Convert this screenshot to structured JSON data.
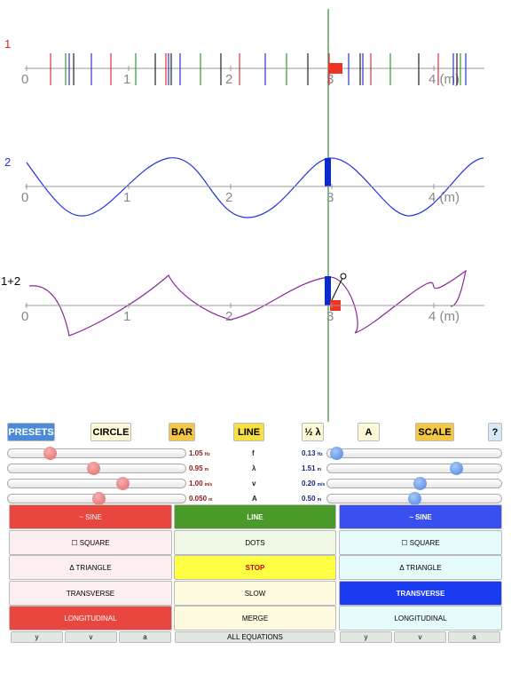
{
  "panels": [
    {
      "label": "1",
      "ticks": [
        "0",
        "1",
        "2",
        "3",
        "4 (m)"
      ]
    },
    {
      "label": "2",
      "ticks": [
        "0",
        "1",
        "2",
        "3",
        "4 (m)"
      ]
    },
    {
      "label": "1+2",
      "ticks": [
        "0",
        "1",
        "2",
        "3",
        "4 (m)"
      ]
    }
  ],
  "toolbar": [
    "PRESETS",
    "CIRCLE",
    "BAR",
    "LINE",
    "½ λ",
    "A",
    "SCALE",
    "?"
  ],
  "sliders": [
    {
      "left_value": "1.05",
      "left_unit": "Hz",
      "symbol": "f",
      "right_value": "0.13",
      "right_unit": "Hz"
    },
    {
      "left_value": "0.95",
      "left_unit": "m",
      "symbol": "λ",
      "right_value": "1.51",
      "right_unit": "m"
    },
    {
      "left_value": "1.00",
      "left_unit": "m/s",
      "symbol": "v",
      "right_value": "0.20",
      "right_unit": "m/s"
    },
    {
      "left_value": "0.050",
      "left_unit": "m",
      "symbol": "A",
      "right_value": "0.50",
      "right_unit": "m"
    }
  ],
  "left_column": [
    "~ SINE",
    "☐ SQUARE",
    "Δ TRIANGLE",
    "TRANSVERSE",
    "LONGITUDINAL"
  ],
  "middle_column": [
    "LINE",
    "DOTS",
    "STOP",
    "SLOW",
    "MERGE"
  ],
  "right_column": [
    "~ SINE",
    "☐ SQUARE",
    "Δ TRIANGLE",
    "TRANSVERSE",
    "LONGITUDINAL"
  ],
  "left_footer": [
    "y",
    "v",
    "a"
  ],
  "middle_footer": "ALL EQUATIONS",
  "right_footer": [
    "y",
    "v",
    "a"
  ]
}
